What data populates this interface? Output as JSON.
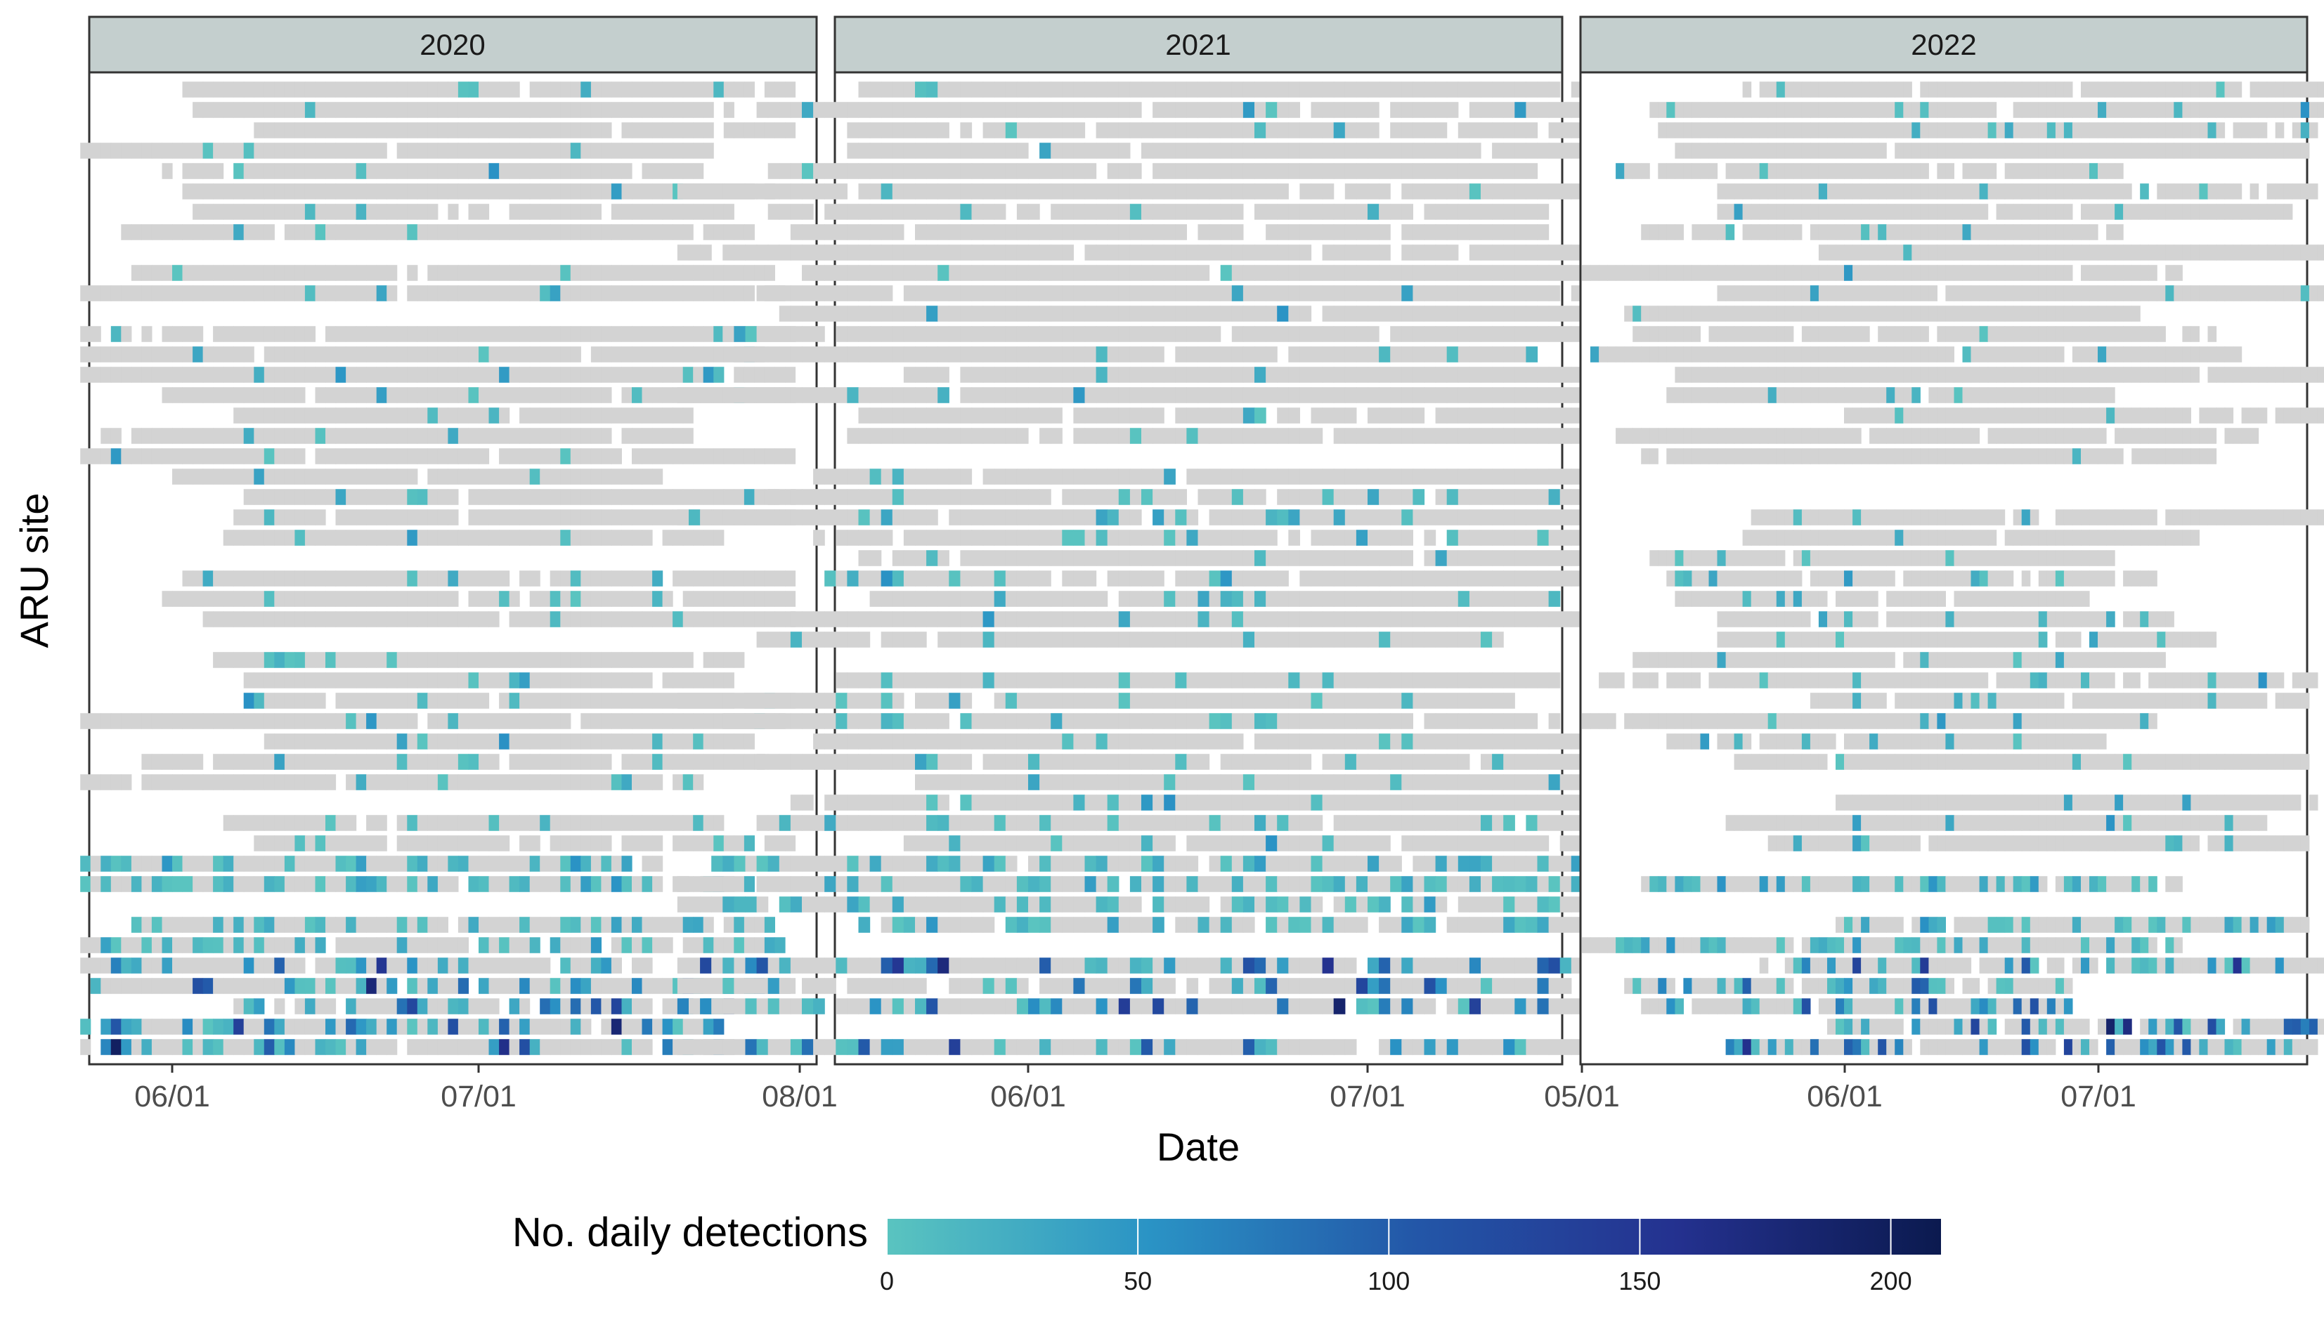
{
  "chart_data": {
    "type": "heatmap",
    "title": "",
    "xlabel": "Date",
    "ylabel": "ARU site",
    "facet_by": "year",
    "panels": [
      {
        "year": "2020",
        "x_ticks": [
          "06/01",
          "07/01",
          "08/01"
        ],
        "xlim": [
          "2020-05-23",
          "2020-08-01"
        ]
      },
      {
        "year": "2021",
        "x_ticks": [
          "06/01",
          "07/01"
        ],
        "xlim": [
          "2021-05-01",
          "2021-08-01"
        ]
      },
      {
        "year": "2022",
        "x_ticks": [
          "05/01",
          "06/01",
          "07/01"
        ],
        "xlim": [
          "2022-05-01",
          "2022-08-01"
        ]
      }
    ],
    "legend": {
      "title": "No. daily detections",
      "position": "bottom",
      "min": 0,
      "max": 200,
      "ticks": [
        "0",
        "50",
        "100",
        "150",
        "200"
      ],
      "color_stops": [
        "#5ac4c0",
        "#2a93c5",
        "#2357a8",
        "#24318f",
        "#0b1a4f"
      ]
    },
    "no_detection_color": "#d3d3d3",
    "rows": 48
  }
}
